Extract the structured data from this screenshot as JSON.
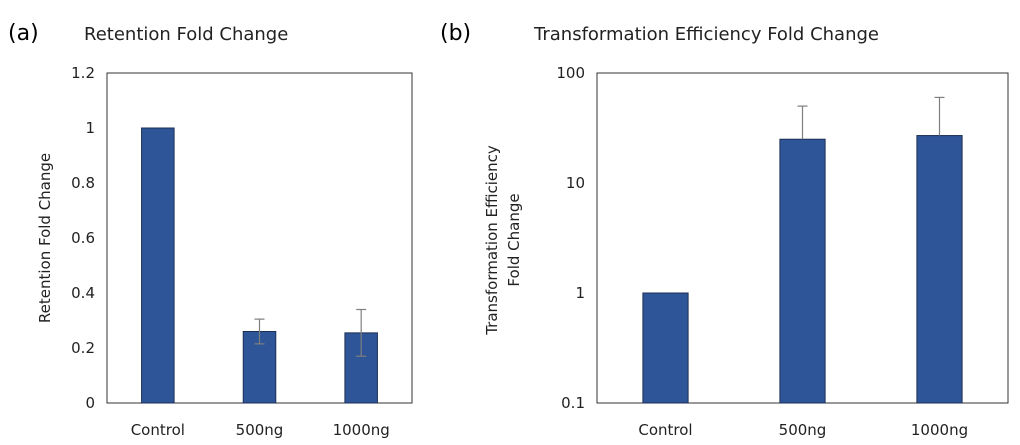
{
  "colors": {
    "bar": "#2e5597",
    "bar_stroke": "#1c2f55",
    "error_bar": "#7f7f7f",
    "axis": "#333333",
    "text": "#222222"
  },
  "chart_data": [
    {
      "panel": "(a)",
      "type": "bar",
      "title": "Retention Fold Change",
      "ylabel": "Retention Fold Change",
      "xlabel": "",
      "categories": [
        "Control",
        "500ng",
        "1000ng"
      ],
      "values": [
        1.0,
        0.26,
        0.255
      ],
      "error": [
        0.0,
        0.045,
        0.085
      ],
      "ylim": [
        0,
        1.2
      ],
      "yscale": "linear",
      "yticks": [
        0,
        0.2,
        0.4,
        0.6,
        0.8,
        1,
        1.2
      ],
      "grid": false,
      "legend": "none"
    },
    {
      "panel": "(b)",
      "type": "bar",
      "title": "Transformation Efficiency Fold Change",
      "ylabel": [
        "Transformation Efficiency",
        "Fold Change"
      ],
      "xlabel": "",
      "categories": [
        "Control",
        "500ng",
        "1000ng"
      ],
      "values": [
        1.0,
        25,
        27
      ],
      "error_upper": [
        1.0,
        50,
        60
      ],
      "ylim": [
        0.1,
        100
      ],
      "yscale": "log",
      "yticks": [
        0.1,
        1,
        10,
        100
      ],
      "grid": false,
      "legend": "none"
    }
  ]
}
